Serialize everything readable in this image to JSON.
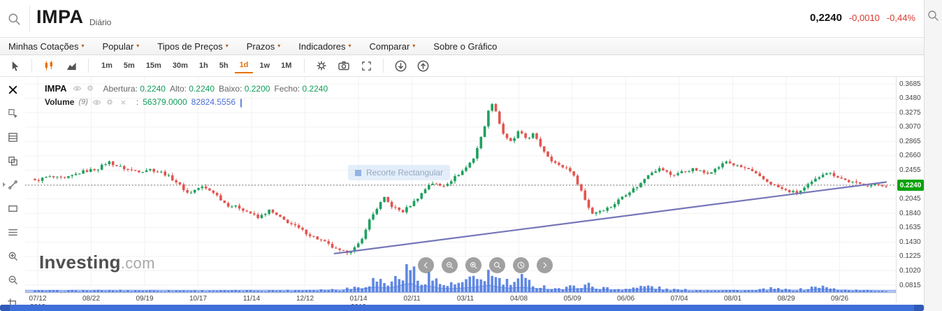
{
  "header": {
    "symbol": "IMPA",
    "period_label": "Diário",
    "price": "0,2240",
    "change": "-0,0010",
    "change_percent": "-0,44%"
  },
  "menu": {
    "items": [
      {
        "label": "Minhas Cotações",
        "arrow": true
      },
      {
        "label": "Popular",
        "arrow": true
      },
      {
        "label": "Tipos de Preços",
        "arrow": true
      },
      {
        "label": "Prazos",
        "arrow": true
      },
      {
        "label": "Indicadores",
        "arrow": true
      },
      {
        "label": "Comparar",
        "arrow": true
      },
      {
        "label": "Sobre o Gráfico",
        "arrow": false
      }
    ]
  },
  "toolbar": {
    "timeframes": [
      "1m",
      "5m",
      "15m",
      "30m",
      "1h",
      "5h",
      "1d",
      "1w",
      "1M"
    ],
    "selected_timeframe": "1d"
  },
  "sidebar": {
    "tools": [
      {
        "icon": "close",
        "name": "close-panel-button",
        "strong": true
      },
      {
        "icon": "cursor-box",
        "name": "select-tool-button"
      },
      {
        "icon": "fibonacci",
        "name": "fibonacci-tool-button"
      },
      {
        "icon": "clone",
        "name": "clone-tool-button"
      },
      {
        "icon": "trendline",
        "name": "trendline-tool-button"
      },
      {
        "icon": "rectangle",
        "name": "rectangle-tool-button"
      },
      {
        "icon": "lines",
        "name": "lines-tool-button"
      },
      {
        "icon": "zoom-in",
        "name": "zoom-in-tool-button"
      },
      {
        "icon": "zoom-out",
        "name": "zoom-out-tool-button"
      },
      {
        "icon": "crop",
        "name": "crop-tool-button"
      }
    ]
  },
  "legend": {
    "symbol": "IMPA",
    "fields": [
      {
        "label": "Abertura:",
        "value": "0.2240"
      },
      {
        "label": "Alto:",
        "value": "0.2240"
      },
      {
        "label": "Baixo:",
        "value": "0.2200"
      },
      {
        "label": "Fecho:",
        "value": "0.2240"
      }
    ],
    "volume": {
      "label": "Volume",
      "param": "(9)",
      "separator": ":",
      "value": "56379.0000",
      "ma_value": "82824.5556",
      "mark": "|"
    }
  },
  "overlay": {
    "tooltip": "Recorte Rectangular"
  },
  "watermark": {
    "bold": "Investing",
    "light": ".com"
  },
  "axes": {
    "y_ticks": [
      "0.3685",
      "0.3480",
      "0.3275",
      "0.3070",
      "0.2865",
      "0.2660",
      "0.2455",
      "0.2250",
      "0.2045",
      "0.1840",
      "0.1635",
      "0.1430",
      "0.1225",
      "0.1020",
      "0.0815"
    ],
    "x_ticks": [
      {
        "label": "07/12",
        "year": "2018"
      },
      {
        "label": "08/22"
      },
      {
        "label": "09/19"
      },
      {
        "label": "10/17"
      },
      {
        "label": "11/14"
      },
      {
        "label": "12/12"
      },
      {
        "label": "01/14",
        "year": "2019"
      },
      {
        "label": "02/11"
      },
      {
        "label": "03/11"
      },
      {
        "label": "04/08"
      },
      {
        "label": "05/09"
      },
      {
        "label": "06/06"
      },
      {
        "label": "07/04"
      },
      {
        "label": "08/01"
      },
      {
        "label": "08/29"
      },
      {
        "label": "09/26"
      }
    ],
    "price_badge": "0.2240"
  },
  "nav": {
    "buttons": [
      {
        "icon": "chevron-left",
        "name": "pan-left-button"
      },
      {
        "icon": "zoom-out",
        "name": "zoom-out-button"
      },
      {
        "icon": "zoom-in",
        "name": "zoom-in-button"
      },
      {
        "icon": "zoom-fit",
        "name": "zoom-fit-button"
      },
      {
        "icon": "history",
        "name": "history-button"
      },
      {
        "icon": "chevron-right",
        "name": "pan-right-button"
      }
    ]
  },
  "colors": {
    "accent_orange": "#e8710a",
    "up": "#1fa05e",
    "down": "#e25550",
    "value_green": "#0f9d58",
    "value_blue": "#4a6fd4",
    "badge_green": "#0aa30a",
    "change_red": "#d6382e",
    "trendline": "#7577b9",
    "volume_bar": "#4f7be0",
    "navigator_fill": "rgba(79,123,224,0.28)",
    "navigator_stroke": "rgba(79,123,224,0.75)",
    "scrollbar_blue": "#3f6fd8"
  },
  "chart_data": {
    "type": "candlestick",
    "symbol": "IMPA",
    "interval": "Diário",
    "open": 0.224,
    "high": 0.224,
    "low": 0.22,
    "close": 0.224,
    "volume": 56379.0,
    "volume_ma": 82824.5556,
    "current_price": 0.224,
    "previous_close_line": 0.224,
    "y_axis": {
      "top": 0.3685,
      "step": 0.0205,
      "count": 15
    },
    "y_range": [
      0.0815,
      0.3685
    ],
    "candle_count": 230,
    "trendline": {
      "x1_f": 0.352,
      "price1": 0.1265,
      "x2_f": 1.0,
      "price2": 0.2285
    },
    "price_keyframes": [
      [
        0.0,
        0.23
      ],
      [
        0.015,
        0.236
      ],
      [
        0.035,
        0.233
      ],
      [
        0.055,
        0.243
      ],
      [
        0.075,
        0.248
      ],
      [
        0.086,
        0.258
      ],
      [
        0.095,
        0.252
      ],
      [
        0.11,
        0.246
      ],
      [
        0.125,
        0.244
      ],
      [
        0.134,
        0.247
      ],
      [
        0.15,
        0.242
      ],
      [
        0.165,
        0.23
      ],
      [
        0.18,
        0.212
      ],
      [
        0.195,
        0.222
      ],
      [
        0.21,
        0.214
      ],
      [
        0.225,
        0.196
      ],
      [
        0.24,
        0.192
      ],
      [
        0.255,
        0.183
      ],
      [
        0.262,
        0.177
      ],
      [
        0.275,
        0.188
      ],
      [
        0.29,
        0.176
      ],
      [
        0.305,
        0.166
      ],
      [
        0.32,
        0.155
      ],
      [
        0.326,
        0.151
      ],
      [
        0.34,
        0.143
      ],
      [
        0.355,
        0.131
      ],
      [
        0.365,
        0.128
      ],
      [
        0.378,
        0.136
      ],
      [
        0.385,
        0.148
      ],
      [
        0.39,
        0.168
      ],
      [
        0.4,
        0.188
      ],
      [
        0.41,
        0.206
      ],
      [
        0.42,
        0.193
      ],
      [
        0.432,
        0.186
      ],
      [
        0.445,
        0.2
      ],
      [
        0.454,
        0.212
      ],
      [
        0.465,
        0.228
      ],
      [
        0.478,
        0.222
      ],
      [
        0.49,
        0.232
      ],
      [
        0.505,
        0.247
      ],
      [
        0.515,
        0.262
      ],
      [
        0.525,
        0.295
      ],
      [
        0.533,
        0.33
      ],
      [
        0.538,
        0.344
      ],
      [
        0.545,
        0.315
      ],
      [
        0.552,
        0.292
      ],
      [
        0.56,
        0.285
      ],
      [
        0.568,
        0.3
      ],
      [
        0.578,
        0.29
      ],
      [
        0.585,
        0.297
      ],
      [
        0.595,
        0.278
      ],
      [
        0.605,
        0.262
      ],
      [
        0.615,
        0.252
      ],
      [
        0.628,
        0.247
      ],
      [
        0.64,
        0.222
      ],
      [
        0.648,
        0.198
      ],
      [
        0.655,
        0.184
      ],
      [
        0.665,
        0.188
      ],
      [
        0.678,
        0.194
      ],
      [
        0.69,
        0.208
      ],
      [
        0.702,
        0.218
      ],
      [
        0.71,
        0.224
      ],
      [
        0.722,
        0.242
      ],
      [
        0.735,
        0.248
      ],
      [
        0.748,
        0.238
      ],
      [
        0.76,
        0.243
      ],
      [
        0.774,
        0.247
      ],
      [
        0.788,
        0.241
      ],
      [
        0.8,
        0.247
      ],
      [
        0.812,
        0.258
      ],
      [
        0.825,
        0.251
      ],
      [
        0.838,
        0.247
      ],
      [
        0.852,
        0.235
      ],
      [
        0.868,
        0.224
      ],
      [
        0.882,
        0.216
      ],
      [
        0.895,
        0.213
      ],
      [
        0.902,
        0.218
      ],
      [
        0.915,
        0.23
      ],
      [
        0.928,
        0.243
      ],
      [
        0.94,
        0.238
      ],
      [
        0.952,
        0.231
      ],
      [
        0.966,
        0.226
      ],
      [
        0.98,
        0.224
      ],
      [
        1.0,
        0.224
      ]
    ],
    "volume_keyframes": [
      [
        0.0,
        0.05
      ],
      [
        0.1,
        0.06
      ],
      [
        0.2,
        0.05
      ],
      [
        0.3,
        0.06
      ],
      [
        0.36,
        0.1
      ],
      [
        0.385,
        0.22
      ],
      [
        0.4,
        0.45
      ],
      [
        0.415,
        0.3
      ],
      [
        0.428,
        0.55
      ],
      [
        0.44,
        1.0
      ],
      [
        0.45,
        0.4
      ],
      [
        0.462,
        0.62
      ],
      [
        0.475,
        0.3
      ],
      [
        0.49,
        0.25
      ],
      [
        0.505,
        0.35
      ],
      [
        0.52,
        0.45
      ],
      [
        0.533,
        0.65
      ],
      [
        0.545,
        0.42
      ],
      [
        0.558,
        0.3
      ],
      [
        0.572,
        0.45
      ],
      [
        0.585,
        0.28
      ],
      [
        0.6,
        0.18
      ],
      [
        0.62,
        0.12
      ],
      [
        0.645,
        0.28
      ],
      [
        0.66,
        0.18
      ],
      [
        0.68,
        0.1
      ],
      [
        0.705,
        0.15
      ],
      [
        0.722,
        0.22
      ],
      [
        0.74,
        0.1
      ],
      [
        0.76,
        0.08
      ],
      [
        0.78,
        0.07
      ],
      [
        0.8,
        0.08
      ],
      [
        0.82,
        0.07
      ],
      [
        0.845,
        0.06
      ],
      [
        0.865,
        0.12
      ],
      [
        0.885,
        0.08
      ],
      [
        0.905,
        0.1
      ],
      [
        0.92,
        0.22
      ],
      [
        0.935,
        0.12
      ],
      [
        0.955,
        0.07
      ],
      [
        0.975,
        0.06
      ],
      [
        1.0,
        0.05
      ]
    ]
  }
}
